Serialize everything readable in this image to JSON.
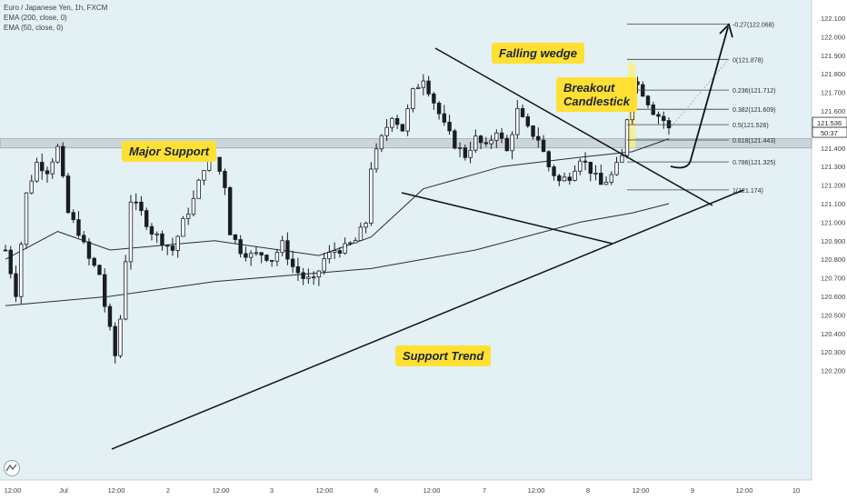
{
  "legend": {
    "line1": "Euro / Japanese Yen, 1h, FXCM",
    "line2": "EMA (200, close, 0)",
    "line3": "EMA (50, close, 0)"
  },
  "annotations": {
    "falling_wedge": "Falling wedge",
    "breakout_line1": "Breakout",
    "breakout_line2": "Candlestick",
    "major_support": "Major Support",
    "support_trend": "Support Trend"
  },
  "price_tags": {
    "current": "121.536",
    "countdown": "50:37"
  },
  "fib_levels": [
    {
      "label": "-0.27(122.068)",
      "price": 122.068
    },
    {
      "label": "0(121.878)",
      "price": 121.878
    },
    {
      "label": "0.236(121.712)",
      "price": 121.712
    },
    {
      "label": "0.382(121.609)",
      "price": 121.609
    },
    {
      "label": "0.5(121.526)",
      "price": 121.526
    },
    {
      "label": "0.618(121.443)",
      "price": 121.443
    },
    {
      "label": "0.786(121.325)",
      "price": 121.325
    },
    {
      "label": "1(121.174)",
      "price": 121.174
    }
  ],
  "colors": {
    "background": "#e3f0f4",
    "candle": "#1b1d24",
    "ema": "#2a2d33",
    "callout": "#ffe033",
    "support_zone": "#b8bfc4",
    "breakout_highlight": "#f4ef8e"
  },
  "chart_data": {
    "type": "candlestick",
    "title": "Euro / Japanese Yen, 1h, FXCM",
    "xlabel": "",
    "ylabel": "",
    "ylim": [
      120.15,
      122.15
    ],
    "x_ticks": [
      "12:00",
      "Jul",
      "12:00",
      "2",
      "12:00",
      "3",
      "12:00",
      "6",
      "12:00",
      "7",
      "12:00",
      "8",
      "12:00",
      "9",
      "12:00",
      "10"
    ],
    "y_ticks": [
      "122.100",
      "122.000",
      "121.900",
      "121.800",
      "121.700",
      "121.600",
      "121.500",
      "121.400",
      "121.300",
      "121.200",
      "121.100",
      "121.000",
      "120.900",
      "120.800",
      "120.700",
      "120.600",
      "120.500",
      "120.400",
      "120.300",
      "120.200"
    ],
    "grid": false,
    "support_zone": [
      121.4,
      121.45
    ],
    "close_path": [
      {
        "t": 0,
        "close": 120.85
      },
      {
        "t": 2,
        "close": 120.62
      },
      {
        "t": 4,
        "close": 121.15
      },
      {
        "t": 6,
        "close": 121.32
      },
      {
        "t": 8,
        "close": 121.28
      },
      {
        "t": 10,
        "close": 121.4
      },
      {
        "t": 12,
        "close": 121.05
      },
      {
        "t": 14,
        "close": 120.95
      },
      {
        "t": 16,
        "close": 120.8
      },
      {
        "t": 18,
        "close": 120.72
      },
      {
        "t": 19,
        "close": 120.55
      },
      {
        "t": 21,
        "close": 120.28
      },
      {
        "t": 22,
        "close": 120.48
      },
      {
        "t": 24,
        "close": 121.12
      },
      {
        "t": 26,
        "close": 121.05
      },
      {
        "t": 28,
        "close": 120.95
      },
      {
        "t": 30,
        "close": 120.9
      },
      {
        "t": 32,
        "close": 120.85
      },
      {
        "t": 34,
        "close": 121.0
      },
      {
        "t": 36,
        "close": 121.12
      },
      {
        "t": 38,
        "close": 121.3
      },
      {
        "t": 40,
        "close": 121.35
      },
      {
        "t": 42,
        "close": 121.2
      },
      {
        "t": 43,
        "close": 120.95
      },
      {
        "t": 45,
        "close": 120.85
      },
      {
        "t": 47,
        "close": 120.82
      },
      {
        "t": 49,
        "close": 120.83
      },
      {
        "t": 51,
        "close": 120.8
      },
      {
        "t": 53,
        "close": 120.88
      },
      {
        "t": 55,
        "close": 120.76
      },
      {
        "t": 57,
        "close": 120.7
      },
      {
        "t": 59,
        "close": 120.68
      },
      {
        "t": 61,
        "close": 120.8
      },
      {
        "t": 63,
        "close": 120.85
      },
      {
        "t": 65,
        "close": 120.86
      },
      {
        "t": 67,
        "close": 120.9
      },
      {
        "t": 69,
        "close": 121.0
      },
      {
        "t": 70,
        "close": 121.3
      },
      {
        "t": 72,
        "close": 121.45
      },
      {
        "t": 74,
        "close": 121.58
      },
      {
        "t": 76,
        "close": 121.5
      },
      {
        "t": 78,
        "close": 121.7
      },
      {
        "t": 80,
        "close": 121.78
      },
      {
        "t": 82,
        "close": 121.65
      },
      {
        "t": 84,
        "close": 121.52
      },
      {
        "t": 86,
        "close": 121.42
      },
      {
        "t": 88,
        "close": 121.36
      },
      {
        "t": 90,
        "close": 121.45
      },
      {
        "t": 92,
        "close": 121.4
      },
      {
        "t": 94,
        "close": 121.5
      },
      {
        "t": 96,
        "close": 121.38
      },
      {
        "t": 98,
        "close": 121.6
      },
      {
        "t": 100,
        "close": 121.5
      },
      {
        "t": 102,
        "close": 121.45
      },
      {
        "t": 104,
        "close": 121.3
      },
      {
        "t": 106,
        "close": 121.22
      },
      {
        "t": 108,
        "close": 121.25
      },
      {
        "t": 110,
        "close": 121.35
      },
      {
        "t": 112,
        "close": 121.28
      },
      {
        "t": 114,
        "close": 121.2
      },
      {
        "t": 116,
        "close": 121.25
      },
      {
        "t": 118,
        "close": 121.35
      },
      {
        "t": 120,
        "close": 121.78
      },
      {
        "t": 122,
        "close": 121.7
      },
      {
        "t": 124,
        "close": 121.6
      },
      {
        "t": 126,
        "close": 121.55
      },
      {
        "t": 127,
        "close": 121.5
      }
    ],
    "series": [
      {
        "name": "EMA (200, close, 0)",
        "values": [
          [
            0,
            120.55
          ],
          [
            20,
            120.6
          ],
          [
            40,
            120.68
          ],
          [
            70,
            120.75
          ],
          [
            90,
            120.85
          ],
          [
            110,
            121.0
          ],
          [
            120,
            121.05
          ],
          [
            127,
            121.1
          ]
        ]
      },
      {
        "name": "EMA (50, close, 0)",
        "values": [
          [
            0,
            120.8
          ],
          [
            10,
            120.95
          ],
          [
            20,
            120.85
          ],
          [
            40,
            120.9
          ],
          [
            60,
            120.82
          ],
          [
            70,
            120.92
          ],
          [
            80,
            121.18
          ],
          [
            95,
            121.3
          ],
          [
            110,
            121.35
          ],
          [
            120,
            121.38
          ],
          [
            127,
            121.45
          ]
        ]
      }
    ]
  }
}
